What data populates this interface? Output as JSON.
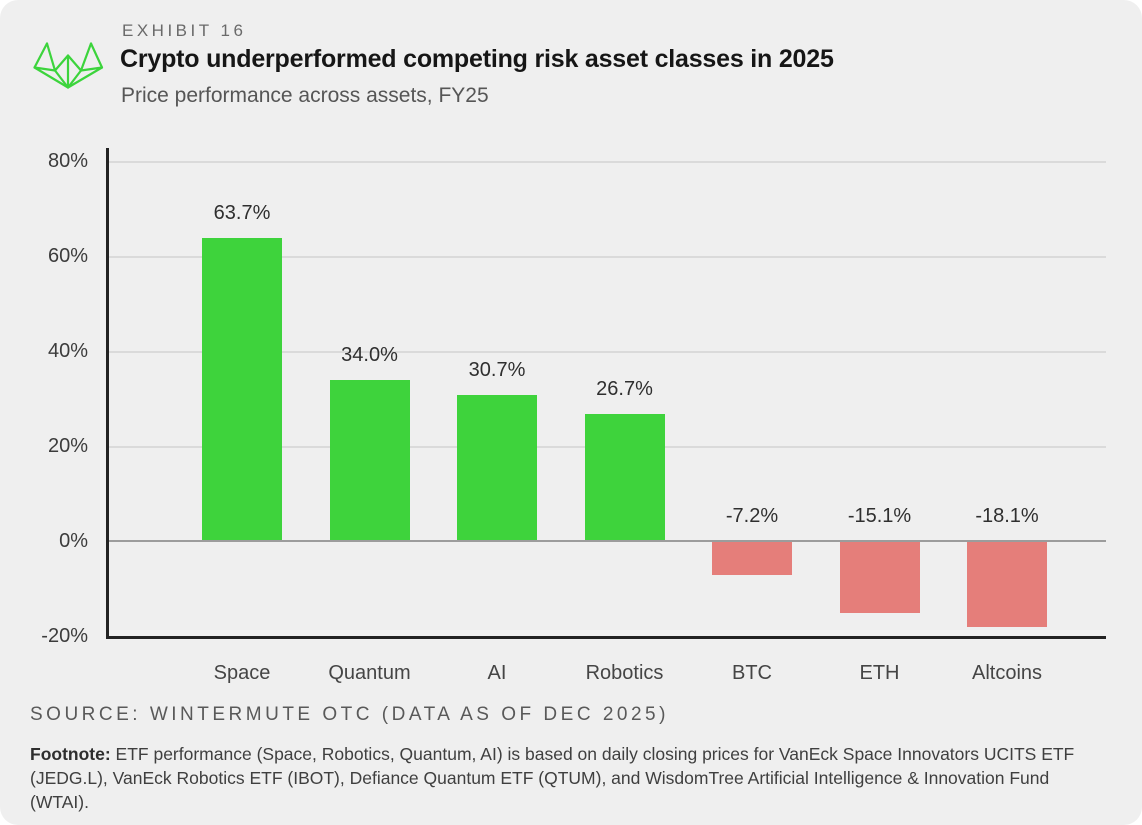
{
  "header": {
    "exhibit_label": "EXHIBIT 16",
    "title": "Crypto underperformed competing risk asset classes in 2025",
    "subtitle": "Price performance across assets, FY25"
  },
  "chart_data": {
    "type": "bar",
    "title": "Crypto underperformed competing risk asset classes in 2025",
    "subtitle": "Price performance across assets, FY25",
    "categories": [
      "Space",
      "Quantum",
      "AI",
      "Robotics",
      "BTC",
      "ETH",
      "Altcoins"
    ],
    "values": [
      63.7,
      34.0,
      30.7,
      26.7,
      -7.2,
      -15.1,
      -18.1
    ],
    "value_labels": [
      "63.7%",
      "34.0%",
      "30.7%",
      "26.7%",
      "-7.2%",
      "-15.1%",
      "-18.1%"
    ],
    "xlabel": "",
    "ylabel": "",
    "ylim": [
      -20,
      80
    ],
    "yticks": [
      80,
      60,
      40,
      20,
      0,
      -20
    ],
    "ytick_labels": [
      "80%",
      "60%",
      "40%",
      "20%",
      "0%",
      "-20%"
    ],
    "grid": true,
    "legend": "none",
    "positive_color": "#3ed33c",
    "negative_color": "#e57e7a"
  },
  "footer": {
    "source": "SOURCE: WINTERMUTE OTC (DATA AS OF DEC 2025)",
    "footnote_label": "Footnote:",
    "footnote_text": "ETF performance (Space, Robotics, Quantum, AI) is based on daily closing prices for VanEck Space Innovators UCITS ETF (JEDG.L), VanEck Robotics ETF (IBOT), Defiance Quantum ETF (QTUM), and WisdomTree Artificial Intelligence & Innovation Fund (WTAI)."
  },
  "colors": {
    "card_bg": "#efefef",
    "axis": "#222222",
    "gridline": "#dadada",
    "zero_line": "#9c9c9c",
    "logo_green": "#3cd43c"
  }
}
